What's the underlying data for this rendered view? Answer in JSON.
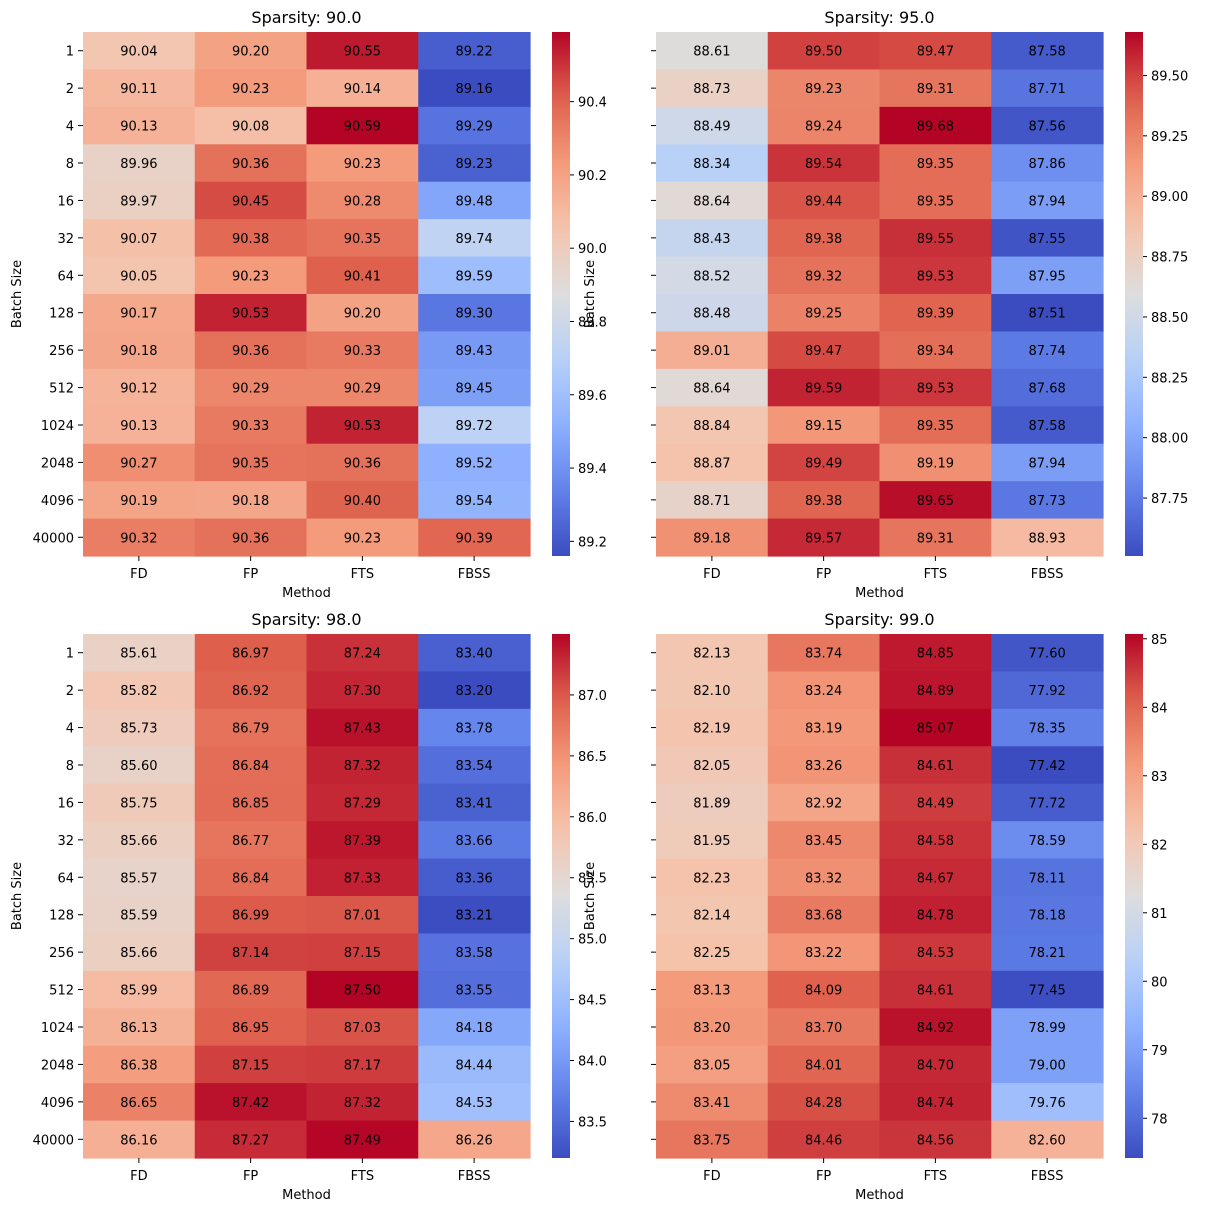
{
  "chart_data": [
    {
      "type": "heatmap",
      "title": "Sparsity: 90.0",
      "xlabel": "Method",
      "ylabel": "Batch Size",
      "columns": [
        "FD",
        "FP",
        "FTS",
        "FBSS"
      ],
      "rows": [
        "1",
        "2",
        "4",
        "8",
        "16",
        "32",
        "64",
        "128",
        "256",
        "512",
        "1024",
        "2048",
        "4096",
        "40000"
      ],
      "values": [
        [
          90.04,
          90.2,
          90.55,
          89.22
        ],
        [
          90.11,
          90.23,
          90.14,
          89.16
        ],
        [
          90.13,
          90.08,
          90.59,
          89.29
        ],
        [
          89.96,
          90.36,
          90.23,
          89.23
        ],
        [
          89.97,
          90.45,
          90.28,
          89.48
        ],
        [
          90.07,
          90.38,
          90.35,
          89.74
        ],
        [
          90.05,
          90.23,
          90.41,
          89.59
        ],
        [
          90.17,
          90.53,
          90.2,
          89.3
        ],
        [
          90.18,
          90.36,
          90.33,
          89.43
        ],
        [
          90.12,
          90.29,
          90.29,
          89.45
        ],
        [
          90.13,
          90.33,
          90.53,
          89.72
        ],
        [
          90.27,
          90.35,
          90.36,
          89.52
        ],
        [
          90.19,
          90.18,
          90.4,
          89.54
        ],
        [
          90.32,
          90.36,
          90.23,
          90.39
        ]
      ],
      "labels": [
        [
          "90.04",
          "90.20",
          "90.55",
          "89.22"
        ],
        [
          "90.11",
          "90.23",
          "90.14",
          "89.16"
        ],
        [
          "90.13",
          "90.08",
          "90.59",
          "89.29"
        ],
        [
          "89.96",
          "90.36",
          "90.23",
          "89.23"
        ],
        [
          "89.97",
          "90.45",
          "90.28",
          "89.48"
        ],
        [
          "90.07",
          "90.38",
          "90.35",
          "89.74"
        ],
        [
          "90.05",
          "90.23",
          "90.41",
          "89.59"
        ],
        [
          "90.17",
          "90.53",
          "90.20",
          "89.30"
        ],
        [
          "90.18",
          "90.36",
          "90.33",
          "89.43"
        ],
        [
          "90.12",
          "90.29",
          "90.29",
          "89.45"
        ],
        [
          "90.13",
          "90.33",
          "90.53",
          "89.72"
        ],
        [
          "90.27",
          "90.35",
          "90.36",
          "89.52"
        ],
        [
          "90.19",
          "90.18",
          "90.40",
          "89.54"
        ],
        [
          "90.32",
          "90.36",
          "90.23",
          "90.39"
        ]
      ],
      "show_ytick_labels": true,
      "colorbar": {
        "vmin": 89.16,
        "vmax": 90.59,
        "ticks": [
          89.2,
          89.4,
          89.6,
          89.8,
          90.0,
          90.2,
          90.4
        ],
        "tick_labels": [
          "89.2",
          "89.4",
          "89.6",
          "89.8",
          "90.0",
          "90.2",
          "90.4"
        ]
      }
    },
    {
      "type": "heatmap",
      "title": "Sparsity: 95.0",
      "xlabel": "Method",
      "ylabel": "Batch Size",
      "columns": [
        "FD",
        "FP",
        "FTS",
        "FBSS"
      ],
      "rows": [
        "1",
        "2",
        "4",
        "8",
        "16",
        "32",
        "64",
        "128",
        "256",
        "512",
        "1024",
        "2048",
        "4096",
        "40000"
      ],
      "values": [
        [
          88.61,
          89.5,
          89.47,
          87.58
        ],
        [
          88.73,
          89.23,
          89.31,
          87.71
        ],
        [
          88.49,
          89.24,
          89.68,
          87.56
        ],
        [
          88.34,
          89.54,
          89.35,
          87.86
        ],
        [
          88.64,
          89.44,
          89.35,
          87.94
        ],
        [
          88.43,
          89.38,
          89.55,
          87.55
        ],
        [
          88.52,
          89.32,
          89.53,
          87.95
        ],
        [
          88.48,
          89.25,
          89.39,
          87.51
        ],
        [
          89.01,
          89.47,
          89.34,
          87.74
        ],
        [
          88.64,
          89.59,
          89.53,
          87.68
        ],
        [
          88.84,
          89.15,
          89.35,
          87.58
        ],
        [
          88.87,
          89.49,
          89.19,
          87.94
        ],
        [
          88.71,
          89.38,
          89.65,
          87.73
        ],
        [
          89.18,
          89.57,
          89.31,
          88.93
        ]
      ],
      "labels": [
        [
          "88.61",
          "89.50",
          "89.47",
          "87.58"
        ],
        [
          "88.73",
          "89.23",
          "89.31",
          "87.71"
        ],
        [
          "88.49",
          "89.24",
          "89.68",
          "87.56"
        ],
        [
          "88.34",
          "89.54",
          "89.35",
          "87.86"
        ],
        [
          "88.64",
          "89.44",
          "89.35",
          "87.94"
        ],
        [
          "88.43",
          "89.38",
          "89.55",
          "87.55"
        ],
        [
          "88.52",
          "89.32",
          "89.53",
          "87.95"
        ],
        [
          "88.48",
          "89.25",
          "89.39",
          "87.51"
        ],
        [
          "89.01",
          "89.47",
          "89.34",
          "87.74"
        ],
        [
          "88.64",
          "89.59",
          "89.53",
          "87.68"
        ],
        [
          "88.84",
          "89.15",
          "89.35",
          "87.58"
        ],
        [
          "88.87",
          "89.49",
          "89.19",
          "87.94"
        ],
        [
          "88.71",
          "89.38",
          "89.65",
          "87.73"
        ],
        [
          "89.18",
          "89.57",
          "89.31",
          "88.93"
        ]
      ],
      "show_ytick_labels": false,
      "colorbar": {
        "vmin": 87.51,
        "vmax": 89.68,
        "ticks": [
          87.75,
          88.0,
          88.25,
          88.5,
          88.75,
          89.0,
          89.25,
          89.5
        ],
        "tick_labels": [
          "87.75",
          "88.00",
          "88.25",
          "88.50",
          "88.75",
          "89.00",
          "89.25",
          "89.50"
        ]
      }
    },
    {
      "type": "heatmap",
      "title": "Sparsity: 98.0",
      "xlabel": "Method",
      "ylabel": "Batch Size",
      "columns": [
        "FD",
        "FP",
        "FTS",
        "FBSS"
      ],
      "rows": [
        "1",
        "2",
        "4",
        "8",
        "16",
        "32",
        "64",
        "128",
        "256",
        "512",
        "1024",
        "2048",
        "4096",
        "40000"
      ],
      "values": [
        [
          85.61,
          86.97,
          87.24,
          83.4
        ],
        [
          85.82,
          86.92,
          87.3,
          83.2
        ],
        [
          85.73,
          86.79,
          87.43,
          83.78
        ],
        [
          85.6,
          86.84,
          87.32,
          83.54
        ],
        [
          85.75,
          86.85,
          87.29,
          83.41
        ],
        [
          85.66,
          86.77,
          87.39,
          83.66
        ],
        [
          85.57,
          86.84,
          87.33,
          83.36
        ],
        [
          85.59,
          86.99,
          87.01,
          83.21
        ],
        [
          85.66,
          87.14,
          87.15,
          83.58
        ],
        [
          85.99,
          86.89,
          87.5,
          83.55
        ],
        [
          86.13,
          86.95,
          87.03,
          84.18
        ],
        [
          86.38,
          87.15,
          87.17,
          84.44
        ],
        [
          86.65,
          87.42,
          87.32,
          84.53
        ],
        [
          86.16,
          87.27,
          87.49,
          86.26
        ]
      ],
      "labels": [
        [
          "85.61",
          "86.97",
          "87.24",
          "83.40"
        ],
        [
          "85.82",
          "86.92",
          "87.30",
          "83.20"
        ],
        [
          "85.73",
          "86.79",
          "87.43",
          "83.78"
        ],
        [
          "85.60",
          "86.84",
          "87.32",
          "83.54"
        ],
        [
          "85.75",
          "86.85",
          "87.29",
          "83.41"
        ],
        [
          "85.66",
          "86.77",
          "87.39",
          "83.66"
        ],
        [
          "85.57",
          "86.84",
          "87.33",
          "83.36"
        ],
        [
          "85.59",
          "86.99",
          "87.01",
          "83.21"
        ],
        [
          "85.66",
          "87.14",
          "87.15",
          "83.58"
        ],
        [
          "85.99",
          "86.89",
          "87.50",
          "83.55"
        ],
        [
          "86.13",
          "86.95",
          "87.03",
          "84.18"
        ],
        [
          "86.38",
          "87.15",
          "87.17",
          "84.44"
        ],
        [
          "86.65",
          "87.42",
          "87.32",
          "84.53"
        ],
        [
          "86.16",
          "87.27",
          "87.49",
          "86.26"
        ]
      ],
      "show_ytick_labels": true,
      "colorbar": {
        "vmin": 83.2,
        "vmax": 87.5,
        "ticks": [
          83.5,
          84.0,
          84.5,
          85.0,
          85.5,
          86.0,
          86.5,
          87.0
        ],
        "tick_labels": [
          "83.5",
          "84.0",
          "84.5",
          "85.0",
          "85.5",
          "86.0",
          "86.5",
          "87.0"
        ]
      }
    },
    {
      "type": "heatmap",
      "title": "Sparsity: 99.0",
      "xlabel": "Method",
      "ylabel": "Batch Size",
      "columns": [
        "FD",
        "FP",
        "FTS",
        "FBSS"
      ],
      "rows": [
        "1",
        "2",
        "4",
        "8",
        "16",
        "32",
        "64",
        "128",
        "256",
        "512",
        "1024",
        "2048",
        "4096",
        "40000"
      ],
      "values": [
        [
          82.13,
          83.74,
          84.85,
          77.6
        ],
        [
          82.1,
          83.24,
          84.89,
          77.92
        ],
        [
          82.19,
          83.19,
          85.07,
          78.35
        ],
        [
          82.05,
          83.26,
          84.61,
          77.42
        ],
        [
          81.89,
          82.92,
          84.49,
          77.72
        ],
        [
          81.95,
          83.45,
          84.58,
          78.59
        ],
        [
          82.23,
          83.32,
          84.67,
          78.11
        ],
        [
          82.14,
          83.68,
          84.78,
          78.18
        ],
        [
          82.25,
          83.22,
          84.53,
          78.21
        ],
        [
          83.13,
          84.09,
          84.61,
          77.45
        ],
        [
          83.2,
          83.7,
          84.92,
          78.99
        ],
        [
          83.05,
          84.01,
          84.7,
          79.0
        ],
        [
          83.41,
          84.28,
          84.74,
          79.76
        ],
        [
          83.75,
          84.46,
          84.56,
          82.6
        ]
      ],
      "labels": [
        [
          "82.13",
          "83.74",
          "84.85",
          "77.60"
        ],
        [
          "82.10",
          "83.24",
          "84.89",
          "77.92"
        ],
        [
          "82.19",
          "83.19",
          "85.07",
          "78.35"
        ],
        [
          "82.05",
          "83.26",
          "84.61",
          "77.42"
        ],
        [
          "81.89",
          "82.92",
          "84.49",
          "77.72"
        ],
        [
          "81.95",
          "83.45",
          "84.58",
          "78.59"
        ],
        [
          "82.23",
          "83.32",
          "84.67",
          "78.11"
        ],
        [
          "82.14",
          "83.68",
          "84.78",
          "78.18"
        ],
        [
          "82.25",
          "83.22",
          "84.53",
          "78.21"
        ],
        [
          "83.13",
          "84.09",
          "84.61",
          "77.45"
        ],
        [
          "83.20",
          "83.70",
          "84.92",
          "78.99"
        ],
        [
          "83.05",
          "84.01",
          "84.70",
          "79.00"
        ],
        [
          "83.41",
          "84.28",
          "84.74",
          "79.76"
        ],
        [
          "83.75",
          "84.46",
          "84.56",
          "82.60"
        ]
      ],
      "show_ytick_labels": false,
      "colorbar": {
        "vmin": 77.42,
        "vmax": 85.07,
        "ticks": [
          78,
          79,
          80,
          81,
          82,
          83,
          84,
          85
        ],
        "tick_labels": [
          "78",
          "79",
          "80",
          "81",
          "82",
          "83",
          "84",
          "85"
        ]
      }
    }
  ]
}
